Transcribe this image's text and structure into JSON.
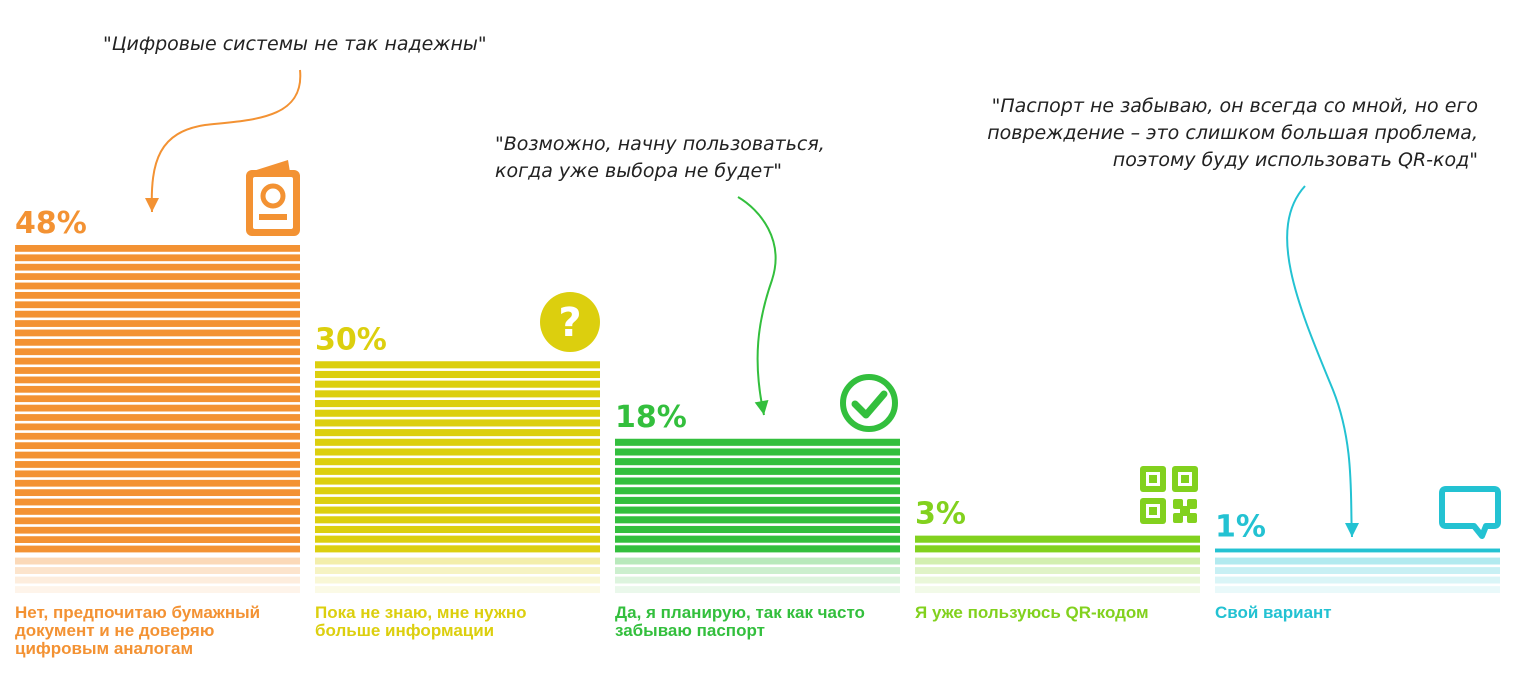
{
  "chart_data": {
    "type": "bar",
    "categories": [
      [
        "Нет, предпочитаю бумажный",
        "документ и не доверяю",
        "цифровым аналогам"
      ],
      [
        "Пока не знаю, мне нужно",
        "больше информации"
      ],
      [
        "Да, я планирую, так как часто",
        "забываю паспорт"
      ],
      [
        "Я уже пользуюсь QR-кодом"
      ],
      [
        "Свой вариант"
      ]
    ],
    "values": [
      48,
      30,
      18,
      3,
      1
    ],
    "value_labels": [
      "48%",
      "30%",
      "18%",
      "3%",
      "1%"
    ],
    "colors": [
      "#f39233",
      "#dccf0e",
      "#33bf3d",
      "#82d11e",
      "#23c2d2"
    ],
    "icons": [
      "passport-icon",
      "question-icon",
      "check-icon",
      "qr-code-icon",
      "chat-bubble-icon"
    ],
    "ylim": [
      0,
      48
    ],
    "grid": false,
    "legend": "none",
    "annotations": [
      {
        "target": 0,
        "lines": [
          "\"Цифровые системы не так надежны\""
        ]
      },
      {
        "target": 2,
        "lines": [
          "\"Возможно, начну пользоваться,",
          "когда уже выбора не будет\""
        ]
      },
      {
        "target": 4,
        "lines": [
          "\"Паспорт не забываю, он всегда со мной, но его",
          "повреждение – это слишком большая проблема,",
          "поэтому буду использовать QR-код\""
        ]
      }
    ]
  }
}
